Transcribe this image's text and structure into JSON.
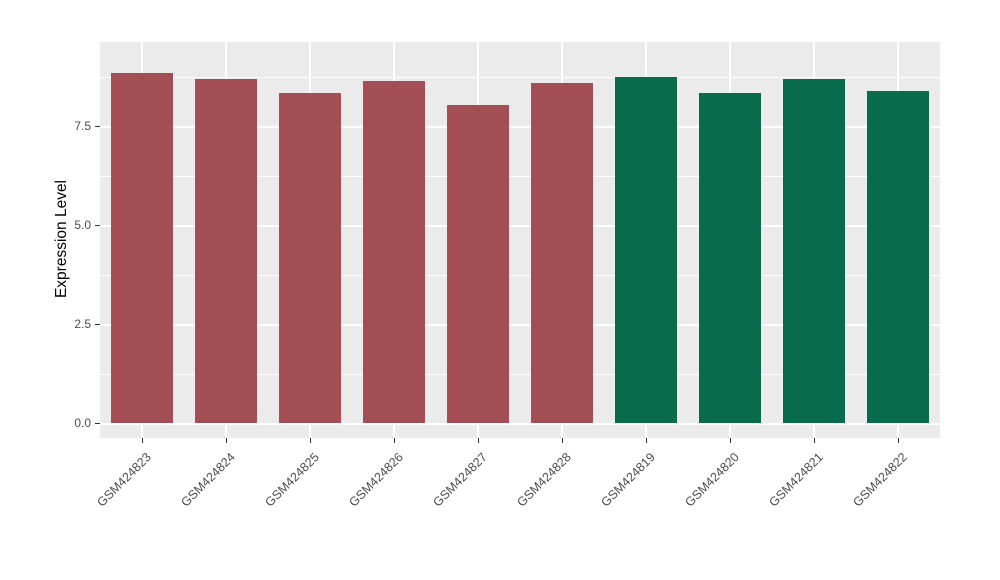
{
  "chart_data": {
    "type": "bar",
    "title": "",
    "xlabel": "",
    "ylabel": "Expression Level",
    "categories": [
      "GSM424823",
      "GSM424824",
      "GSM424825",
      "GSM424826",
      "GSM424827",
      "GSM424828",
      "GSM424819",
      "GSM424820",
      "GSM424821",
      "GSM424822"
    ],
    "values": [
      8.85,
      8.7,
      8.35,
      8.65,
      8.05,
      8.6,
      8.75,
      8.35,
      8.7,
      8.4
    ],
    "bar_colors": [
      "#A34E54",
      "#A34E54",
      "#A34E54",
      "#A34E54",
      "#A34E54",
      "#A34E54",
      "#086B4C",
      "#086B4C",
      "#086B4C",
      "#086B4C"
    ],
    "y_ticks": [
      0.0,
      2.5,
      5.0,
      7.5
    ],
    "y_tick_labels": [
      "0.0",
      "2.5",
      "5.0",
      "7.5"
    ],
    "y_minor_ticks": [
      1.25,
      3.75,
      6.25,
      8.75
    ],
    "ylim": [
      -0.37,
      9.63
    ],
    "grid": true,
    "legend": "none",
    "colors": {
      "panel_background": "#EBEBEB",
      "grid": "#FFFFFF",
      "tick": "#333333",
      "tick_text": "#4D4D4D",
      "axis_title_text": "#000000",
      "group_red": "#A34E54",
      "group_green": "#086B4C"
    }
  }
}
